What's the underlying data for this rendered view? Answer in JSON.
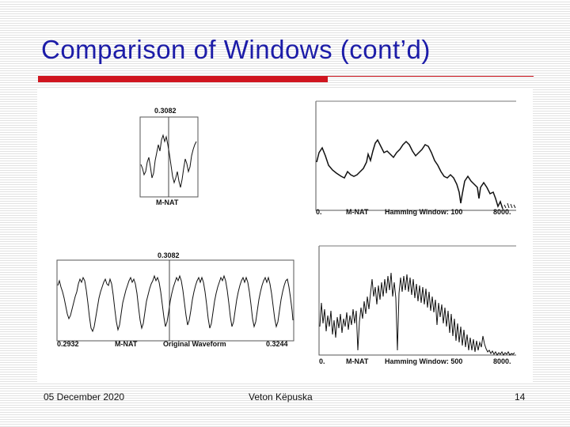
{
  "slide": {
    "title": "Comparison of Windows (cont’d)",
    "accent_color": "#d0151f",
    "title_color": "#1c1ca8"
  },
  "figure": {
    "small_frame": {
      "top_label": "0.3082",
      "bottom_label": "M-NAT"
    },
    "spectrum_100": {
      "x_start": "0.",
      "utterance": "M-NAT",
      "window": "Hamming Window: 100",
      "x_end": "8000."
    },
    "waveform": {
      "top_label": "0.3082",
      "x_start": "0.2932",
      "utterance": "M-NAT",
      "name": "Original Waveform",
      "x_end": "0.3244"
    },
    "spectrum_500": {
      "x_start": "0.",
      "utterance": "M-NAT",
      "window": "Hamming Window: 500",
      "x_end": "8000."
    }
  },
  "footer": {
    "date": "05 December 2020",
    "author": "Veton Këpuska",
    "page": "14"
  }
}
